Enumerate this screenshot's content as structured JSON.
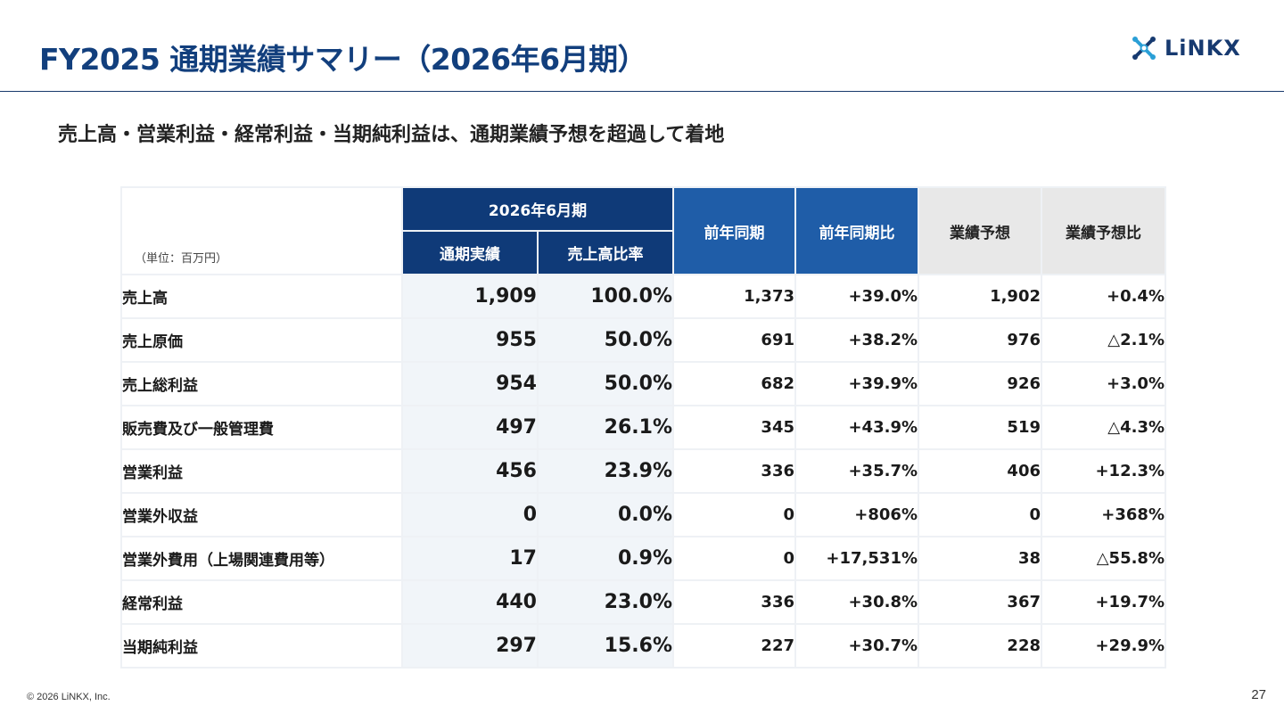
{
  "header": {
    "title": "FY2025 通期業績サマリー（2026年6月期）",
    "logo_text": "LiNKX",
    "logo_icon": "linkx-mark-icon"
  },
  "subtitle": "売上高・営業利益・経常利益・当期純利益は、通期業績予想を超過して着地",
  "table": {
    "unit_label": "（単位：百万円）",
    "group_header": "2026年6月期",
    "columns": {
      "actual": "通期実績",
      "sales_ratio": "売上高比率",
      "prev_year": "前年同期",
      "prev_year_ratio": "前年同期比",
      "forecast": "業績予想",
      "forecast_ratio": "業績予想比"
    },
    "rows": [
      {
        "label": "売上高",
        "actual": "1,909",
        "sales_ratio": "100.0%",
        "prev_year": "1,373",
        "prev_year_ratio": "+39.0%",
        "forecast": "1,902",
        "forecast_ratio": "+0.4%"
      },
      {
        "label": "売上原価",
        "actual": "955",
        "sales_ratio": "50.0%",
        "prev_year": "691",
        "prev_year_ratio": "+38.2%",
        "forecast": "976",
        "forecast_ratio": "△2.1%"
      },
      {
        "label": "売上総利益",
        "actual": "954",
        "sales_ratio": "50.0%",
        "prev_year": "682",
        "prev_year_ratio": "+39.9%",
        "forecast": "926",
        "forecast_ratio": "+3.0%"
      },
      {
        "label": "販売費及び一般管理費",
        "actual": "497",
        "sales_ratio": "26.1%",
        "prev_year": "345",
        "prev_year_ratio": "+43.9%",
        "forecast": "519",
        "forecast_ratio": "△4.3%"
      },
      {
        "label": "営業利益",
        "actual": "456",
        "sales_ratio": "23.9%",
        "prev_year": "336",
        "prev_year_ratio": "+35.7%",
        "forecast": "406",
        "forecast_ratio": "+12.3%"
      },
      {
        "label": "営業外収益",
        "actual": "0",
        "sales_ratio": "0.0%",
        "prev_year": "0",
        "prev_year_ratio": "+806%",
        "forecast": "0",
        "forecast_ratio": "+368%"
      },
      {
        "label": "営業外費用（上場関連費用等）",
        "actual": "17",
        "sales_ratio": "0.9%",
        "prev_year": "0",
        "prev_year_ratio": "+17,531%",
        "forecast": "38",
        "forecast_ratio": "△55.8%"
      },
      {
        "label": "経常利益",
        "actual": "440",
        "sales_ratio": "23.0%",
        "prev_year": "336",
        "prev_year_ratio": "+30.8%",
        "forecast": "367",
        "forecast_ratio": "+19.7%"
      },
      {
        "label": "当期純利益",
        "actual": "297",
        "sales_ratio": "15.6%",
        "prev_year": "227",
        "prev_year_ratio": "+30.7%",
        "forecast": "228",
        "forecast_ratio": "+29.9%"
      }
    ]
  },
  "footer": {
    "copyright": "© 2026 LiNKX, Inc.",
    "page_number": "27"
  },
  "colors": {
    "title": "#123f7d",
    "header_dark": "#0f3a78",
    "header_mid": "#1f5da8",
    "header_gray": "#e8e8e8",
    "actual_bg": "#f1f5f9"
  }
}
